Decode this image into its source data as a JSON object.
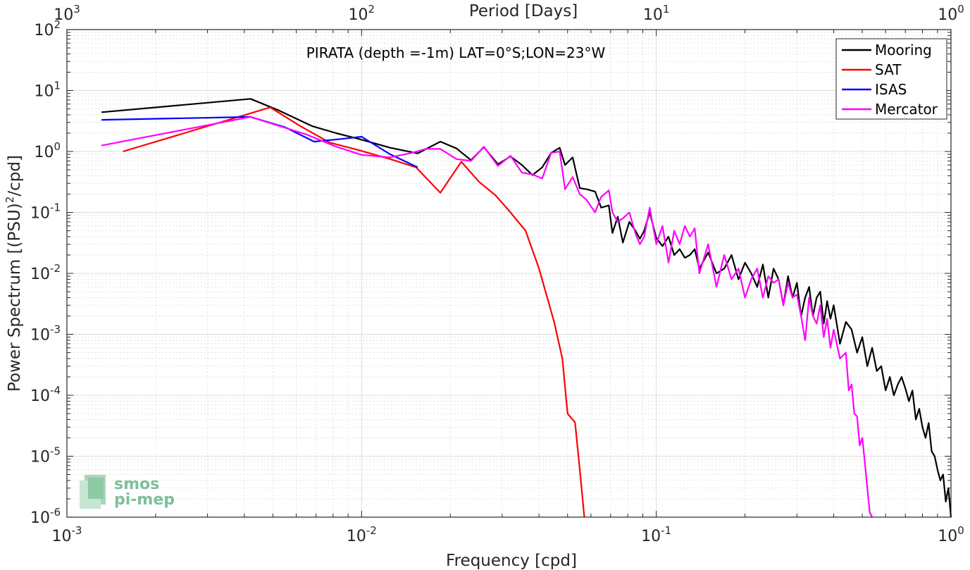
{
  "chart_data": {
    "type": "line",
    "title": "PIRATA (depth =-1m) LAT=0°S;LON=23°W",
    "xlabel": "Frequency [cpd]",
    "ylabel_pre": "Power Spectrum [(PSU)",
    "ylabel_sup": "2",
    "ylabel_post": "/cpd]",
    "top_axis_label": "Period [Days]",
    "x_scale": "log",
    "y_scale": "log",
    "xlim": [
      0.001,
      1
    ],
    "ylim": [
      1e-06,
      100
    ],
    "grid": true,
    "legend_position": "top-right",
    "x_ticks": [
      {
        "base": "10",
        "exp": "-3"
      },
      {
        "base": "10",
        "exp": "-2"
      },
      {
        "base": "10",
        "exp": "-1"
      },
      {
        "base": "10",
        "exp": "0"
      }
    ],
    "top_ticks": [
      {
        "base": "10",
        "exp": "3"
      },
      {
        "base": "10",
        "exp": "2"
      },
      {
        "base": "10",
        "exp": "1"
      },
      {
        "base": "10",
        "exp": "0"
      }
    ],
    "y_ticks": [
      {
        "base": "10",
        "exp": "-6"
      },
      {
        "base": "10",
        "exp": "-5"
      },
      {
        "base": "10",
        "exp": "-4"
      },
      {
        "base": "10",
        "exp": "-3"
      },
      {
        "base": "10",
        "exp": "-2"
      },
      {
        "base": "10",
        "exp": "-1"
      },
      {
        "base": "10",
        "exp": "0"
      },
      {
        "base": "10",
        "exp": "1"
      },
      {
        "base": "10",
        "exp": "2"
      }
    ],
    "series": [
      {
        "name": "Mooring",
        "color": "#000000",
        "points": [
          [
            0.00131,
            4.4
          ],
          [
            0.0042,
            7.3
          ],
          [
            0.0052,
            4.8
          ],
          [
            0.0068,
            2.6
          ],
          [
            0.0082,
            2.0
          ],
          [
            0.0098,
            1.6
          ],
          [
            0.0125,
            1.15
          ],
          [
            0.0155,
            0.93
          ],
          [
            0.0185,
            1.45
          ],
          [
            0.021,
            1.12
          ],
          [
            0.0235,
            0.72
          ],
          [
            0.026,
            1.18
          ],
          [
            0.029,
            0.62
          ],
          [
            0.032,
            0.83
          ],
          [
            0.035,
            0.6
          ],
          [
            0.038,
            0.41
          ],
          [
            0.041,
            0.55
          ],
          [
            0.044,
            0.95
          ],
          [
            0.047,
            1.15
          ],
          [
            0.049,
            0.6
          ],
          [
            0.052,
            0.8
          ],
          [
            0.055,
            0.25
          ],
          [
            0.058,
            0.24
          ],
          [
            0.062,
            0.22
          ],
          [
            0.065,
            0.12
          ],
          [
            0.069,
            0.13
          ],
          [
            0.071,
            0.046
          ],
          [
            0.074,
            0.085
          ],
          [
            0.077,
            0.032
          ],
          [
            0.081,
            0.07
          ],
          [
            0.085,
            0.05
          ],
          [
            0.088,
            0.037
          ],
          [
            0.091,
            0.05
          ],
          [
            0.095,
            0.1
          ],
          [
            0.1,
            0.038
          ],
          [
            0.105,
            0.028
          ],
          [
            0.11,
            0.04
          ],
          [
            0.115,
            0.02
          ],
          [
            0.12,
            0.025
          ],
          [
            0.125,
            0.018
          ],
          [
            0.13,
            0.02
          ],
          [
            0.135,
            0.025
          ],
          [
            0.14,
            0.012
          ],
          [
            0.15,
            0.022
          ],
          [
            0.16,
            0.01
          ],
          [
            0.17,
            0.012
          ],
          [
            0.18,
            0.02
          ],
          [
            0.19,
            0.008
          ],
          [
            0.2,
            0.015
          ],
          [
            0.21,
            0.01
          ],
          [
            0.22,
            0.006
          ],
          [
            0.23,
            0.014
          ],
          [
            0.24,
            0.004
          ],
          [
            0.25,
            0.012
          ],
          [
            0.26,
            0.008
          ],
          [
            0.27,
            0.003
          ],
          [
            0.28,
            0.009
          ],
          [
            0.29,
            0.004
          ],
          [
            0.3,
            0.007
          ],
          [
            0.31,
            0.002
          ],
          [
            0.32,
            0.004
          ],
          [
            0.33,
            0.006
          ],
          [
            0.34,
            0.002
          ],
          [
            0.35,
            0.004
          ],
          [
            0.36,
            0.005
          ],
          [
            0.37,
            0.0015
          ],
          [
            0.38,
            0.0035
          ],
          [
            0.39,
            0.0018
          ],
          [
            0.4,
            0.003
          ],
          [
            0.42,
            0.0007
          ],
          [
            0.44,
            0.0016
          ],
          [
            0.46,
            0.0012
          ],
          [
            0.48,
            0.0005
          ],
          [
            0.5,
            0.0009
          ],
          [
            0.52,
            0.0003
          ],
          [
            0.54,
            0.0006
          ],
          [
            0.56,
            0.00025
          ],
          [
            0.58,
            0.0003
          ],
          [
            0.6,
            0.00012
          ],
          [
            0.62,
            0.0002
          ],
          [
            0.64,
            0.0001
          ],
          [
            0.66,
            0.00015
          ],
          [
            0.68,
            0.0002
          ],
          [
            0.7,
            0.00013
          ],
          [
            0.72,
            8e-05
          ],
          [
            0.74,
            0.00012
          ],
          [
            0.76,
            4e-05
          ],
          [
            0.78,
            6e-05
          ],
          [
            0.8,
            3e-05
          ],
          [
            0.82,
            2e-05
          ],
          [
            0.84,
            3.5e-05
          ],
          [
            0.86,
            1.2e-05
          ],
          [
            0.88,
            1e-05
          ],
          [
            0.9,
            6e-06
          ],
          [
            0.92,
            4e-06
          ],
          [
            0.94,
            5e-06
          ],
          [
            0.96,
            1.8e-06
          ],
          [
            0.98,
            3e-06
          ],
          [
            1.0,
            1e-06
          ]
        ]
      },
      {
        "name": "SAT",
        "color": "#ff0000",
        "points": [
          [
            0.00155,
            1.0
          ],
          [
            0.0049,
            5.3
          ],
          [
            0.0062,
            2.6
          ],
          [
            0.0078,
            1.4
          ],
          [
            0.0098,
            1.05
          ],
          [
            0.0125,
            0.75
          ],
          [
            0.0153,
            0.55
          ],
          [
            0.0185,
            0.21
          ],
          [
            0.0218,
            0.68
          ],
          [
            0.025,
            0.32
          ],
          [
            0.0285,
            0.19
          ],
          [
            0.032,
            0.1
          ],
          [
            0.036,
            0.05
          ],
          [
            0.04,
            0.012
          ],
          [
            0.045,
            0.0016
          ],
          [
            0.048,
            0.0004
          ],
          [
            0.05,
            5e-05
          ],
          [
            0.053,
            3.6e-05
          ],
          [
            0.055,
            6e-06
          ],
          [
            0.057,
            1e-06
          ]
        ]
      },
      {
        "name": "ISAS",
        "color": "#0000ff",
        "points": [
          [
            0.00131,
            3.3
          ],
          [
            0.0042,
            3.7
          ],
          [
            0.0055,
            2.5
          ],
          [
            0.0069,
            1.45
          ],
          [
            0.0085,
            1.6
          ],
          [
            0.01,
            1.75
          ],
          [
            0.0125,
            0.9
          ],
          [
            0.0155,
            0.55
          ]
        ]
      },
      {
        "name": "Mercator",
        "color": "#ff00ff",
        "points": [
          [
            0.00131,
            1.25
          ],
          [
            0.0042,
            3.7
          ],
          [
            0.0065,
            1.9
          ],
          [
            0.0082,
            1.2
          ],
          [
            0.01,
            0.88
          ],
          [
            0.0125,
            0.8
          ],
          [
            0.0148,
            0.95
          ],
          [
            0.0165,
            1.1
          ],
          [
            0.0185,
            1.1
          ],
          [
            0.021,
            0.75
          ],
          [
            0.0235,
            0.7
          ],
          [
            0.026,
            1.2
          ],
          [
            0.029,
            0.58
          ],
          [
            0.032,
            0.85
          ],
          [
            0.035,
            0.45
          ],
          [
            0.038,
            0.42
          ],
          [
            0.041,
            0.36
          ],
          [
            0.044,
            0.95
          ],
          [
            0.047,
            1.0
          ],
          [
            0.049,
            0.24
          ],
          [
            0.052,
            0.38
          ],
          [
            0.055,
            0.2
          ],
          [
            0.058,
            0.16
          ],
          [
            0.062,
            0.1
          ],
          [
            0.065,
            0.18
          ],
          [
            0.069,
            0.23
          ],
          [
            0.071,
            0.1
          ],
          [
            0.074,
            0.07
          ],
          [
            0.077,
            0.08
          ],
          [
            0.081,
            0.1
          ],
          [
            0.085,
            0.045
          ],
          [
            0.088,
            0.03
          ],
          [
            0.091,
            0.04
          ],
          [
            0.095,
            0.12
          ],
          [
            0.1,
            0.03
          ],
          [
            0.105,
            0.06
          ],
          [
            0.11,
            0.015
          ],
          [
            0.115,
            0.05
          ],
          [
            0.12,
            0.03
          ],
          [
            0.125,
            0.06
          ],
          [
            0.13,
            0.04
          ],
          [
            0.135,
            0.055
          ],
          [
            0.14,
            0.01
          ],
          [
            0.15,
            0.03
          ],
          [
            0.16,
            0.006
          ],
          [
            0.17,
            0.02
          ],
          [
            0.18,
            0.008
          ],
          [
            0.19,
            0.012
          ],
          [
            0.2,
            0.004
          ],
          [
            0.21,
            0.008
          ],
          [
            0.22,
            0.012
          ],
          [
            0.23,
            0.004
          ],
          [
            0.24,
            0.009
          ],
          [
            0.25,
            0.007
          ],
          [
            0.26,
            0.008
          ],
          [
            0.27,
            0.003
          ],
          [
            0.28,
            0.007
          ],
          [
            0.29,
            0.004
          ],
          [
            0.3,
            0.0045
          ],
          [
            0.31,
            0.002
          ],
          [
            0.32,
            0.0008
          ],
          [
            0.33,
            0.004
          ],
          [
            0.34,
            0.002
          ],
          [
            0.35,
            0.0015
          ],
          [
            0.36,
            0.003
          ],
          [
            0.37,
            0.0009
          ],
          [
            0.38,
            0.0018
          ],
          [
            0.39,
            0.0006
          ],
          [
            0.4,
            0.0012
          ],
          [
            0.42,
            0.0004
          ],
          [
            0.44,
            0.0005
          ],
          [
            0.45,
            0.00012
          ],
          [
            0.46,
            0.00015
          ],
          [
            0.47,
            5e-05
          ],
          [
            0.48,
            4.5e-05
          ],
          [
            0.49,
            1.5e-05
          ],
          [
            0.5,
            2e-05
          ],
          [
            0.51,
            8e-06
          ],
          [
            0.52,
            3e-06
          ],
          [
            0.53,
            1.2e-06
          ],
          [
            0.54,
            1e-06
          ]
        ]
      }
    ]
  },
  "logo": {
    "line1": "smos",
    "line2": "pi-mep"
  }
}
